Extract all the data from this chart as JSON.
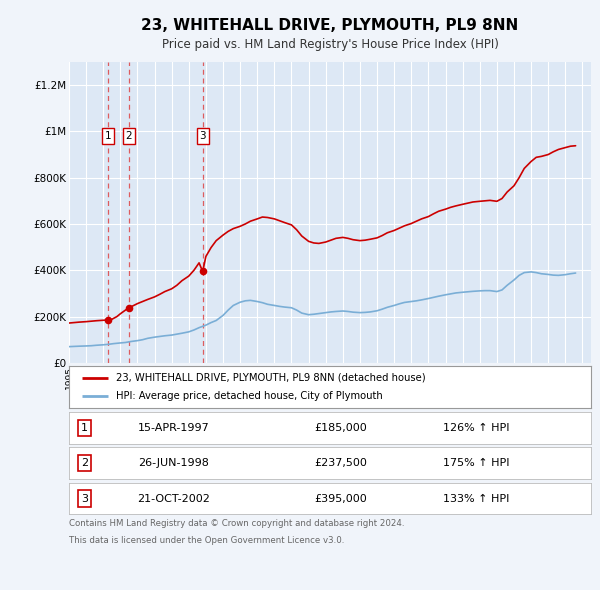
{
  "title": "23, WHITEHALL DRIVE, PLYMOUTH, PL9 8NN",
  "subtitle": "Price paid vs. HM Land Registry's House Price Index (HPI)",
  "title_fontsize": 11,
  "subtitle_fontsize": 8.5,
  "background_color": "#f0f4fa",
  "plot_bg_color": "#dde8f5",
  "grid_color": "#ffffff",
  "red_line_color": "#cc0000",
  "blue_line_color": "#7aaed6",
  "sale_marker_color": "#cc0000",
  "dashed_line_color": "#dd4444",
  "sales": [
    {
      "date_num": 1997.29,
      "price": 185000,
      "label": "1"
    },
    {
      "date_num": 1998.49,
      "price": 237500,
      "label": "2"
    },
    {
      "date_num": 2002.81,
      "price": 395000,
      "label": "3"
    }
  ],
  "legend_entries": [
    "23, WHITEHALL DRIVE, PLYMOUTH, PL9 8NN (detached house)",
    "HPI: Average price, detached house, City of Plymouth"
  ],
  "table_rows": [
    {
      "num": "1",
      "date": "15-APR-1997",
      "price": "£185,000",
      "hpi": "126% ↑ HPI"
    },
    {
      "num": "2",
      "date": "26-JUN-1998",
      "price": "£237,500",
      "hpi": "175% ↑ HPI"
    },
    {
      "num": "3",
      "date": "21-OCT-2002",
      "price": "£395,000",
      "hpi": "133% ↑ HPI"
    }
  ],
  "footnote1": "Contains HM Land Registry data © Crown copyright and database right 2024.",
  "footnote2": "This data is licensed under the Open Government Licence v3.0.",
  "ylim": [
    0,
    1300000
  ],
  "xlim_start": 1995.0,
  "xlim_end": 2025.5,
  "yticks": [
    0,
    200000,
    400000,
    600000,
    800000,
    1000000,
    1200000
  ],
  "ylabels": [
    "£0",
    "£200K",
    "£400K",
    "£600K",
    "£800K",
    "£1M",
    "£1.2M"
  ],
  "hpi_data": {
    "years": [
      1995.0,
      1995.3,
      1995.6,
      1996.0,
      1996.3,
      1996.6,
      1997.0,
      1997.3,
      1997.6,
      1998.0,
      1998.3,
      1998.6,
      1999.0,
      1999.3,
      1999.6,
      2000.0,
      2000.3,
      2000.6,
      2001.0,
      2001.3,
      2001.6,
      2002.0,
      2002.3,
      2002.6,
      2003.0,
      2003.3,
      2003.6,
      2004.0,
      2004.3,
      2004.6,
      2005.0,
      2005.3,
      2005.6,
      2006.0,
      2006.3,
      2006.6,
      2007.0,
      2007.3,
      2007.6,
      2008.0,
      2008.3,
      2008.6,
      2009.0,
      2009.3,
      2009.6,
      2010.0,
      2010.3,
      2010.6,
      2011.0,
      2011.3,
      2011.6,
      2012.0,
      2012.3,
      2012.6,
      2013.0,
      2013.3,
      2013.6,
      2014.0,
      2014.3,
      2014.6,
      2015.0,
      2015.3,
      2015.6,
      2016.0,
      2016.3,
      2016.6,
      2017.0,
      2017.3,
      2017.6,
      2018.0,
      2018.3,
      2018.6,
      2019.0,
      2019.3,
      2019.6,
      2020.0,
      2020.3,
      2020.6,
      2021.0,
      2021.3,
      2021.6,
      2022.0,
      2022.3,
      2022.6,
      2023.0,
      2023.3,
      2023.6,
      2024.0,
      2024.3,
      2024.6
    ],
    "values": [
      70000,
      71000,
      72000,
      73000,
      74000,
      76000,
      78000,
      80000,
      83000,
      86000,
      88000,
      92000,
      96000,
      100000,
      106000,
      111000,
      114000,
      117000,
      120000,
      124000,
      128000,
      134000,
      142000,
      152000,
      163000,
      174000,
      183000,
      205000,
      228000,
      248000,
      262000,
      268000,
      270000,
      265000,
      260000,
      253000,
      248000,
      244000,
      241000,
      238000,
      228000,
      215000,
      208000,
      210000,
      213000,
      217000,
      220000,
      222000,
      224000,
      222000,
      219000,
      217000,
      218000,
      220000,
      225000,
      232000,
      240000,
      248000,
      255000,
      261000,
      265000,
      268000,
      272000,
      278000,
      283000,
      288000,
      294000,
      298000,
      302000,
      305000,
      307000,
      309000,
      311000,
      312000,
      312000,
      308000,
      315000,
      335000,
      358000,
      378000,
      390000,
      393000,
      390000,
      385000,
      382000,
      379000,
      378000,
      381000,
      385000,
      388000
    ]
  },
  "red_line_data": {
    "years": [
      1995.0,
      1995.3,
      1995.6,
      1996.0,
      1996.3,
      1996.6,
      1997.0,
      1997.29,
      1997.5,
      1997.8,
      1998.0,
      1998.3,
      1998.49,
      1998.7,
      1999.0,
      1999.3,
      1999.6,
      2000.0,
      2000.3,
      2000.6,
      2001.0,
      2001.3,
      2001.6,
      2002.0,
      2002.3,
      2002.6,
      2002.81,
      2003.0,
      2003.3,
      2003.6,
      2004.0,
      2004.3,
      2004.6,
      2005.0,
      2005.3,
      2005.6,
      2006.0,
      2006.3,
      2006.6,
      2007.0,
      2007.3,
      2007.6,
      2008.0,
      2008.3,
      2008.6,
      2009.0,
      2009.3,
      2009.6,
      2010.0,
      2010.3,
      2010.6,
      2011.0,
      2011.3,
      2011.6,
      2012.0,
      2012.3,
      2012.6,
      2013.0,
      2013.3,
      2013.6,
      2014.0,
      2014.3,
      2014.6,
      2015.0,
      2015.3,
      2015.6,
      2016.0,
      2016.3,
      2016.6,
      2017.0,
      2017.3,
      2017.6,
      2018.0,
      2018.3,
      2018.6,
      2019.0,
      2019.3,
      2019.6,
      2020.0,
      2020.3,
      2020.6,
      2021.0,
      2021.3,
      2021.6,
      2022.0,
      2022.3,
      2022.6,
      2023.0,
      2023.3,
      2023.6,
      2024.0,
      2024.3,
      2024.6
    ],
    "values": [
      172000,
      174000,
      176000,
      178000,
      180000,
      182000,
      184000,
      185000,
      188000,
      200000,
      212000,
      228000,
      237500,
      245000,
      256000,
      265000,
      274000,
      285000,
      296000,
      308000,
      320000,
      335000,
      355000,
      375000,
      400000,
      432000,
      395000,
      460000,
      498000,
      528000,
      552000,
      568000,
      580000,
      590000,
      600000,
      612000,
      622000,
      630000,
      628000,
      622000,
      614000,
      606000,
      596000,
      575000,
      548000,
      525000,
      518000,
      516000,
      522000,
      530000,
      538000,
      542000,
      538000,
      532000,
      528000,
      530000,
      534000,
      540000,
      550000,
      562000,
      572000,
      582000,
      592000,
      602000,
      612000,
      622000,
      632000,
      644000,
      655000,
      664000,
      672000,
      678000,
      685000,
      690000,
      695000,
      698000,
      700000,
      702000,
      698000,
      710000,
      738000,
      765000,
      800000,
      840000,
      870000,
      888000,
      892000,
      900000,
      912000,
      922000,
      930000,
      936000,
      938000
    ]
  }
}
